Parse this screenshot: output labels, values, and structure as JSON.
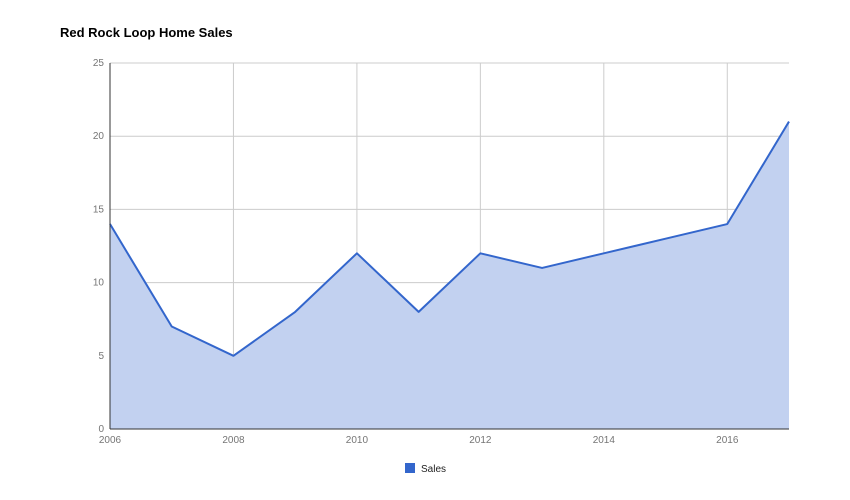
{
  "chart_data": {
    "type": "area",
    "title": "Red Rock Loop Home Sales",
    "x": [
      2006,
      2007,
      2008,
      2009,
      2010,
      2011,
      2012,
      2013,
      2014,
      2015,
      2016,
      2017
    ],
    "series": [
      {
        "name": "Sales",
        "values": [
          14,
          7,
          5,
          8,
          12,
          8,
          12,
          11,
          12,
          13,
          14,
          21
        ]
      }
    ],
    "xlim": [
      2006,
      2017
    ],
    "ylim": [
      0,
      25
    ],
    "x_ticks": [
      "2006",
      "2008",
      "2010",
      "2012",
      "2014",
      "2016"
    ],
    "y_ticks": [
      "0",
      "5",
      "10",
      "15",
      "20",
      "25"
    ],
    "grid": true,
    "legend_position": "bottom",
    "colors": {
      "line": "#3366cc",
      "fill": "#c2d1f0",
      "grid": "#cccccc",
      "axis": "#333333"
    }
  }
}
